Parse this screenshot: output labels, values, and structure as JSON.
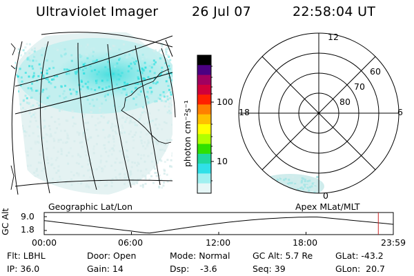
{
  "header": {
    "title": "Ultraviolet Imager",
    "date": "26 Jul 07",
    "time": "22:58:04 UT"
  },
  "colorbar": {
    "unit_label": "photon cm⁻²s⁻¹",
    "ticks": [
      "100",
      "10"
    ],
    "colors": [
      "#000000",
      "#4b0082",
      "#a00060",
      "#d0003a",
      "#ff2000",
      "#ff7f00",
      "#ffc000",
      "#ffff00",
      "#b0ff00",
      "#30e000",
      "#20d8a0",
      "#30e0e8",
      "#a0f0f0",
      "#e6f7f7"
    ]
  },
  "panels": {
    "geo_label": "Geographic Lat/Lon",
    "apex_label": "Apex MLat/MLT"
  },
  "polar": {
    "lat_labels": [
      "60",
      "70",
      "80"
    ],
    "mlt_labels": {
      "top": "12",
      "left": "18",
      "right": "6",
      "bottom": "0"
    }
  },
  "timeline": {
    "ylabel": "GC Alt",
    "ytick_high": "9.0",
    "ytick_low": "1.8",
    "xticks": [
      "00:00",
      "06:00",
      "12:00",
      "18:00",
      "23:59"
    ],
    "current_marker_hours": 22.97
  },
  "info": {
    "filter": "Flt: LBHL",
    "door": "Door: Open",
    "mode": "Mode: Normal",
    "gc_alt": "GC Alt: 5.7 Re",
    "glat": "GLat: -43.2",
    "ip": "IP: 36.0",
    "gain": "Gain: 14",
    "dsp": "Dsp:    -3.6",
    "seq": "Seq: 39",
    "glon": "GLon:  20.7"
  }
}
